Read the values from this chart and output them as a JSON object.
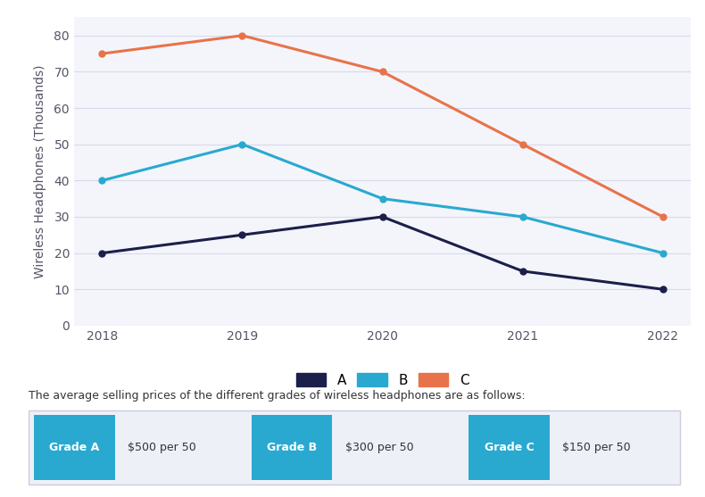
{
  "years": [
    2018,
    2019,
    2020,
    2021,
    2022
  ],
  "series_A": [
    20,
    25,
    30,
    15,
    10
  ],
  "series_B": [
    40,
    50,
    35,
    30,
    20
  ],
  "series_C": [
    75,
    80,
    70,
    50,
    30
  ],
  "color_A": "#1c1f4a",
  "color_B": "#29a9d0",
  "color_C": "#e8734a",
  "ylabel": "Wireless Headphones (Thousands)",
  "ylim": [
    0,
    85
  ],
  "yticks": [
    0,
    10,
    20,
    30,
    40,
    50,
    60,
    70,
    80
  ],
  "bg_color": "#ffffff",
  "plot_bg_color": "#f4f5fb",
  "grid_color": "#d8daea",
  "legend_labels": [
    "A",
    "B",
    "C"
  ],
  "footer_text": "The average selling prices of the different grades of wireless headphones are as follows:",
  "grades": [
    "Grade A",
    "Grade B",
    "Grade C"
  ],
  "prices": [
    "$500 per 50",
    "$300 per 50",
    "$150 per 50"
  ],
  "grade_btn_color": "#29a9d0",
  "grade_btn_text_color": "#ffffff",
  "price_text_color": "#333333",
  "line_width": 2.2,
  "marker": "o",
  "marker_size": 5
}
